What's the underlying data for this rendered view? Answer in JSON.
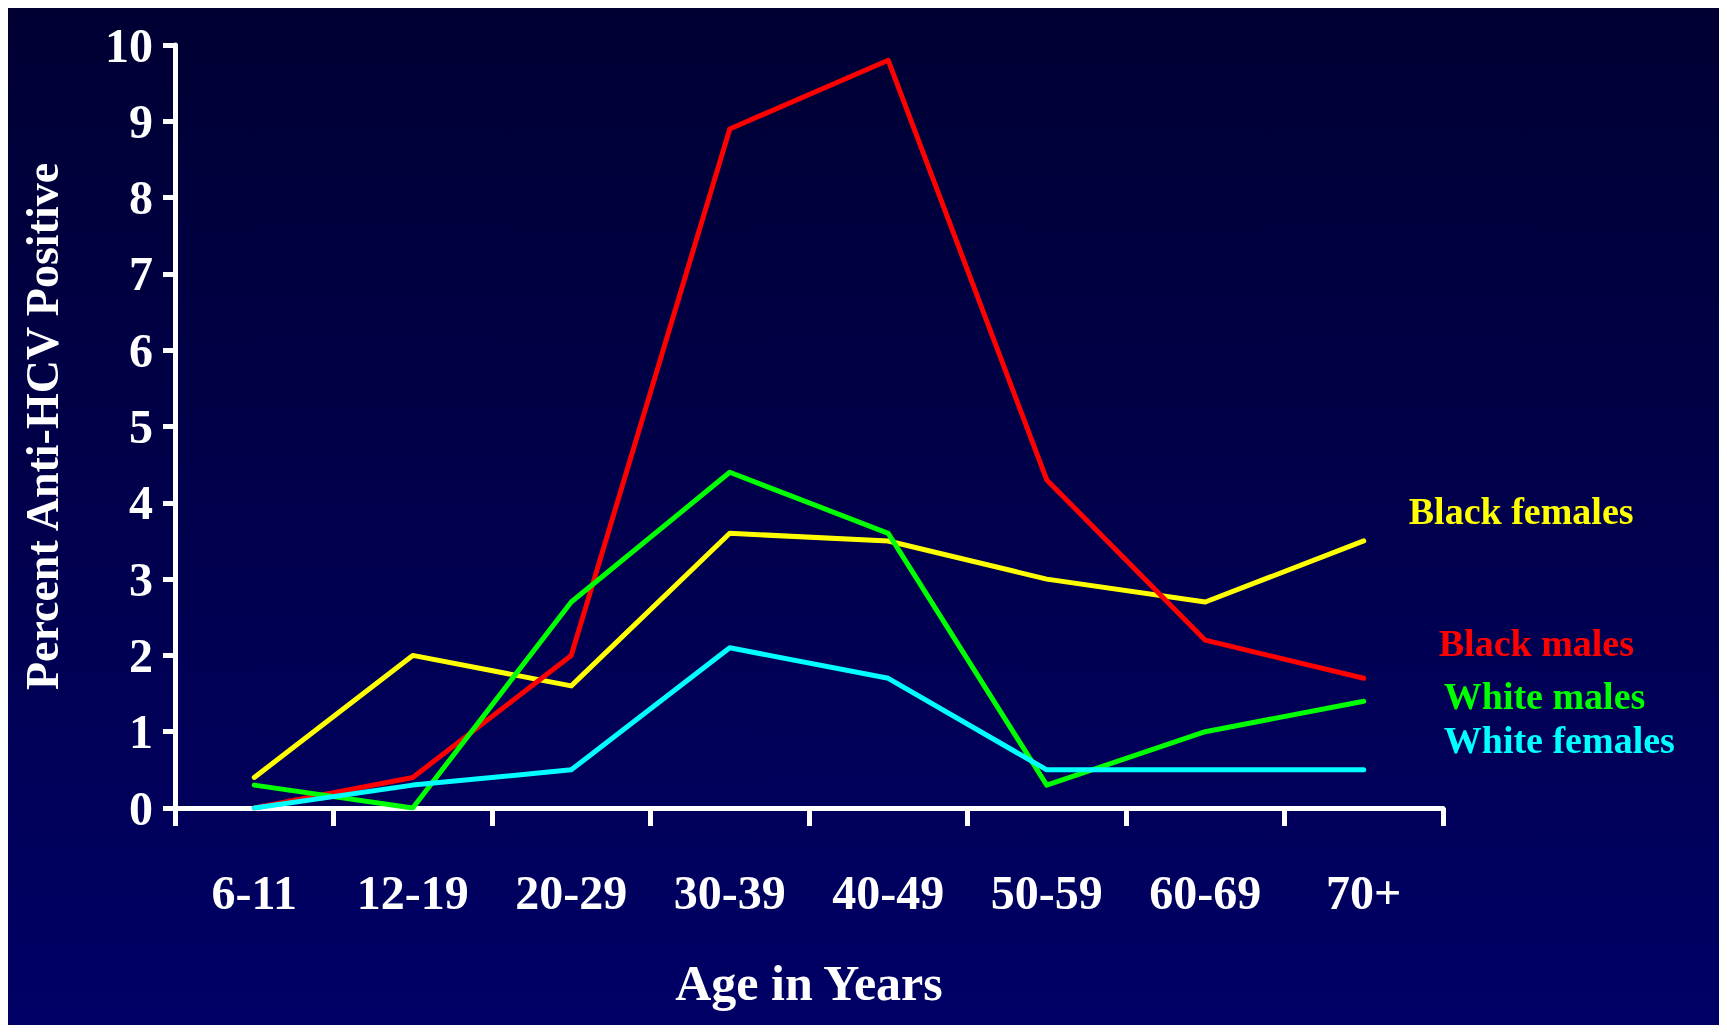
{
  "chart_data": {
    "type": "line",
    "xlabel": "Age in Years",
    "ylabel": "Percent Anti-HCV Positive",
    "categories": [
      "6-11",
      "12-19",
      "20-29",
      "30-39",
      "40-49",
      "50-59",
      "60-69",
      "70+"
    ],
    "series": [
      {
        "name": "Black females",
        "color": "#ffff00",
        "values": [
          0.4,
          2.0,
          1.6,
          3.6,
          3.5,
          3.0,
          2.7,
          3.5
        ]
      },
      {
        "name": "Black males",
        "color": "#ff0000",
        "values": [
          0.0,
          0.4,
          2.0,
          8.9,
          9.8,
          4.3,
          2.2,
          1.7
        ]
      },
      {
        "name": "White males",
        "color": "#00ff00",
        "values": [
          0.3,
          0.0,
          2.7,
          4.4,
          3.6,
          0.3,
          1.0,
          1.4
        ]
      },
      {
        "name": "White females",
        "color": "#00ffff",
        "values": [
          0.0,
          0.3,
          0.5,
          2.1,
          1.7,
          0.5,
          0.5,
          0.5
        ]
      }
    ],
    "ylim": [
      0,
      10
    ],
    "yticks": [
      0,
      1,
      2,
      3,
      4,
      5,
      6,
      7,
      8,
      9,
      10
    ],
    "grid": false,
    "legend": false,
    "marker": "none",
    "line_style": "solid"
  }
}
